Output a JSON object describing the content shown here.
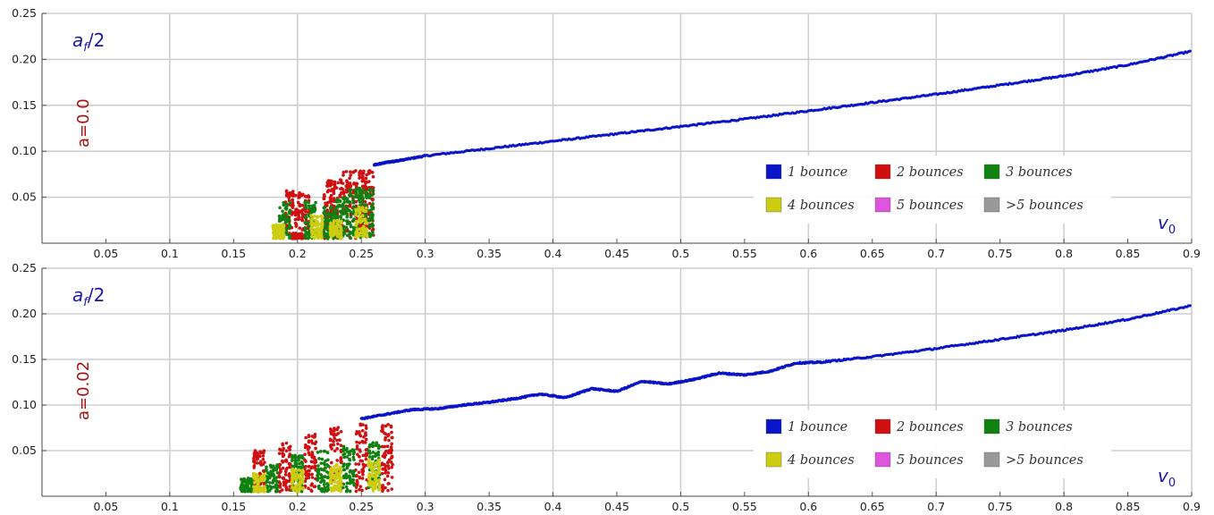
{
  "chart_data": [
    {
      "type": "scatter",
      "ylabel_main": "a",
      "ylabel_sub": "f",
      "ylabel_rest": "/2",
      "xlabel_main": "v",
      "xlabel_sub": "0",
      "param_label": "a=0.0",
      "xlim": [
        0,
        0.9
      ],
      "ylim": [
        0,
        0.25
      ],
      "x_ticks": [
        "0.05",
        "0.1",
        "0.15",
        "0.2",
        "0.25",
        "0.3",
        "0.35",
        "0.4",
        "0.45",
        "0.5",
        "0.55",
        "0.6",
        "0.65",
        "0.7",
        "0.75",
        "0.8",
        "0.85",
        "0.9"
      ],
      "y_ticks": [
        "0.05",
        "0.10",
        "0.15",
        "0.20",
        "0.25"
      ],
      "grid": true,
      "legend_position": "bottom-right",
      "legend": [
        {
          "label": "1 bounce",
          "color": "#0a14c8"
        },
        {
          "label": "2 bounces",
          "color": "#d01010"
        },
        {
          "label": "3 bounces",
          "color": "#108010"
        },
        {
          "label": "4 bounces",
          "color": "#cccc10"
        },
        {
          "label": "5 bounces",
          "color": "#dd55dd"
        },
        {
          "label": ">5 bounces",
          "color": "#999999"
        }
      ],
      "series": [
        {
          "name": "1 bounce",
          "x": [
            0.26,
            0.27,
            0.28,
            0.3,
            0.35,
            0.4,
            0.45,
            0.5,
            0.55,
            0.6,
            0.65,
            0.7,
            0.75,
            0.8,
            0.85,
            0.9
          ],
          "y": [
            0.085,
            0.088,
            0.09,
            0.095,
            0.103,
            0.111,
            0.119,
            0.127,
            0.135,
            0.144,
            0.153,
            0.162,
            0.172,
            0.182,
            0.194,
            0.209
          ]
        },
        {
          "name": "2 bounces",
          "x": [
            0.195,
            0.2,
            0.205,
            0.225,
            0.23,
            0.24,
            0.25,
            0.255
          ],
          "y": [
            0.058,
            0.01,
            0.055,
            0.07,
            0.07,
            0.078,
            0.08,
            0.081
          ]
        },
        {
          "name": "3 bounces",
          "x": [
            0.19,
            0.21,
            0.225,
            0.235,
            0.245,
            0.255
          ],
          "y": [
            0.045,
            0.045,
            0.04,
            0.05,
            0.06,
            0.06
          ]
        },
        {
          "name": "4 bounces",
          "x": [
            0.185,
            0.215,
            0.23,
            0.25
          ],
          "y": [
            0.02,
            0.03,
            0.025,
            0.04
          ]
        }
      ]
    },
    {
      "type": "scatter",
      "ylabel_main": "a",
      "ylabel_sub": "f",
      "ylabel_rest": "/2",
      "xlabel_main": "v",
      "xlabel_sub": "0",
      "param_label": "a=0.02",
      "xlim": [
        0,
        0.9
      ],
      "ylim": [
        0,
        0.25
      ],
      "x_ticks": [
        "0.05",
        "0.1",
        "0.15",
        "0.2",
        "0.25",
        "0.3",
        "0.35",
        "0.4",
        "0.45",
        "0.5",
        "0.55",
        "0.6",
        "0.65",
        "0.7",
        "0.75",
        "0.8",
        "0.85",
        "0.9"
      ],
      "y_ticks": [
        "0.05",
        "0.10",
        "0.15",
        "0.20",
        "0.25"
      ],
      "grid": true,
      "legend_position": "bottom-right",
      "legend": [
        {
          "label": "1 bounce",
          "color": "#0a14c8"
        },
        {
          "label": "2 bounces",
          "color": "#d01010"
        },
        {
          "label": "3 bounces",
          "color": "#108010"
        },
        {
          "label": "4 bounces",
          "color": "#cccc10"
        },
        {
          "label": "5 bounces",
          "color": "#dd55dd"
        },
        {
          "label": ">5 bounces",
          "color": "#999999"
        }
      ],
      "series": [
        {
          "name": "1 bounce",
          "x": [
            0.25,
            0.27,
            0.29,
            0.31,
            0.33,
            0.35,
            0.37,
            0.39,
            0.41,
            0.43,
            0.45,
            0.47,
            0.49,
            0.51,
            0.53,
            0.55,
            0.57,
            0.59,
            0.61,
            0.65,
            0.7,
            0.75,
            0.8,
            0.85,
            0.9
          ],
          "y": [
            0.085,
            0.09,
            0.095,
            0.096,
            0.1,
            0.103,
            0.107,
            0.112,
            0.108,
            0.118,
            0.115,
            0.126,
            0.123,
            0.128,
            0.135,
            0.133,
            0.137,
            0.146,
            0.147,
            0.153,
            0.162,
            0.172,
            0.182,
            0.194,
            0.209
          ]
        },
        {
          "name": "2 bounces",
          "x": [
            0.17,
            0.19,
            0.21,
            0.23,
            0.25,
            0.27
          ],
          "y": [
            0.05,
            0.06,
            0.068,
            0.078,
            0.08,
            0.08
          ]
        },
        {
          "name": "3 bounces",
          "x": [
            0.16,
            0.18,
            0.2,
            0.22,
            0.24,
            0.26
          ],
          "y": [
            0.02,
            0.035,
            0.045,
            0.05,
            0.055,
            0.06
          ]
        },
        {
          "name": "4 bounces",
          "x": [
            0.17,
            0.2,
            0.23,
            0.26
          ],
          "y": [
            0.025,
            0.03,
            0.035,
            0.04
          ]
        }
      ]
    }
  ]
}
